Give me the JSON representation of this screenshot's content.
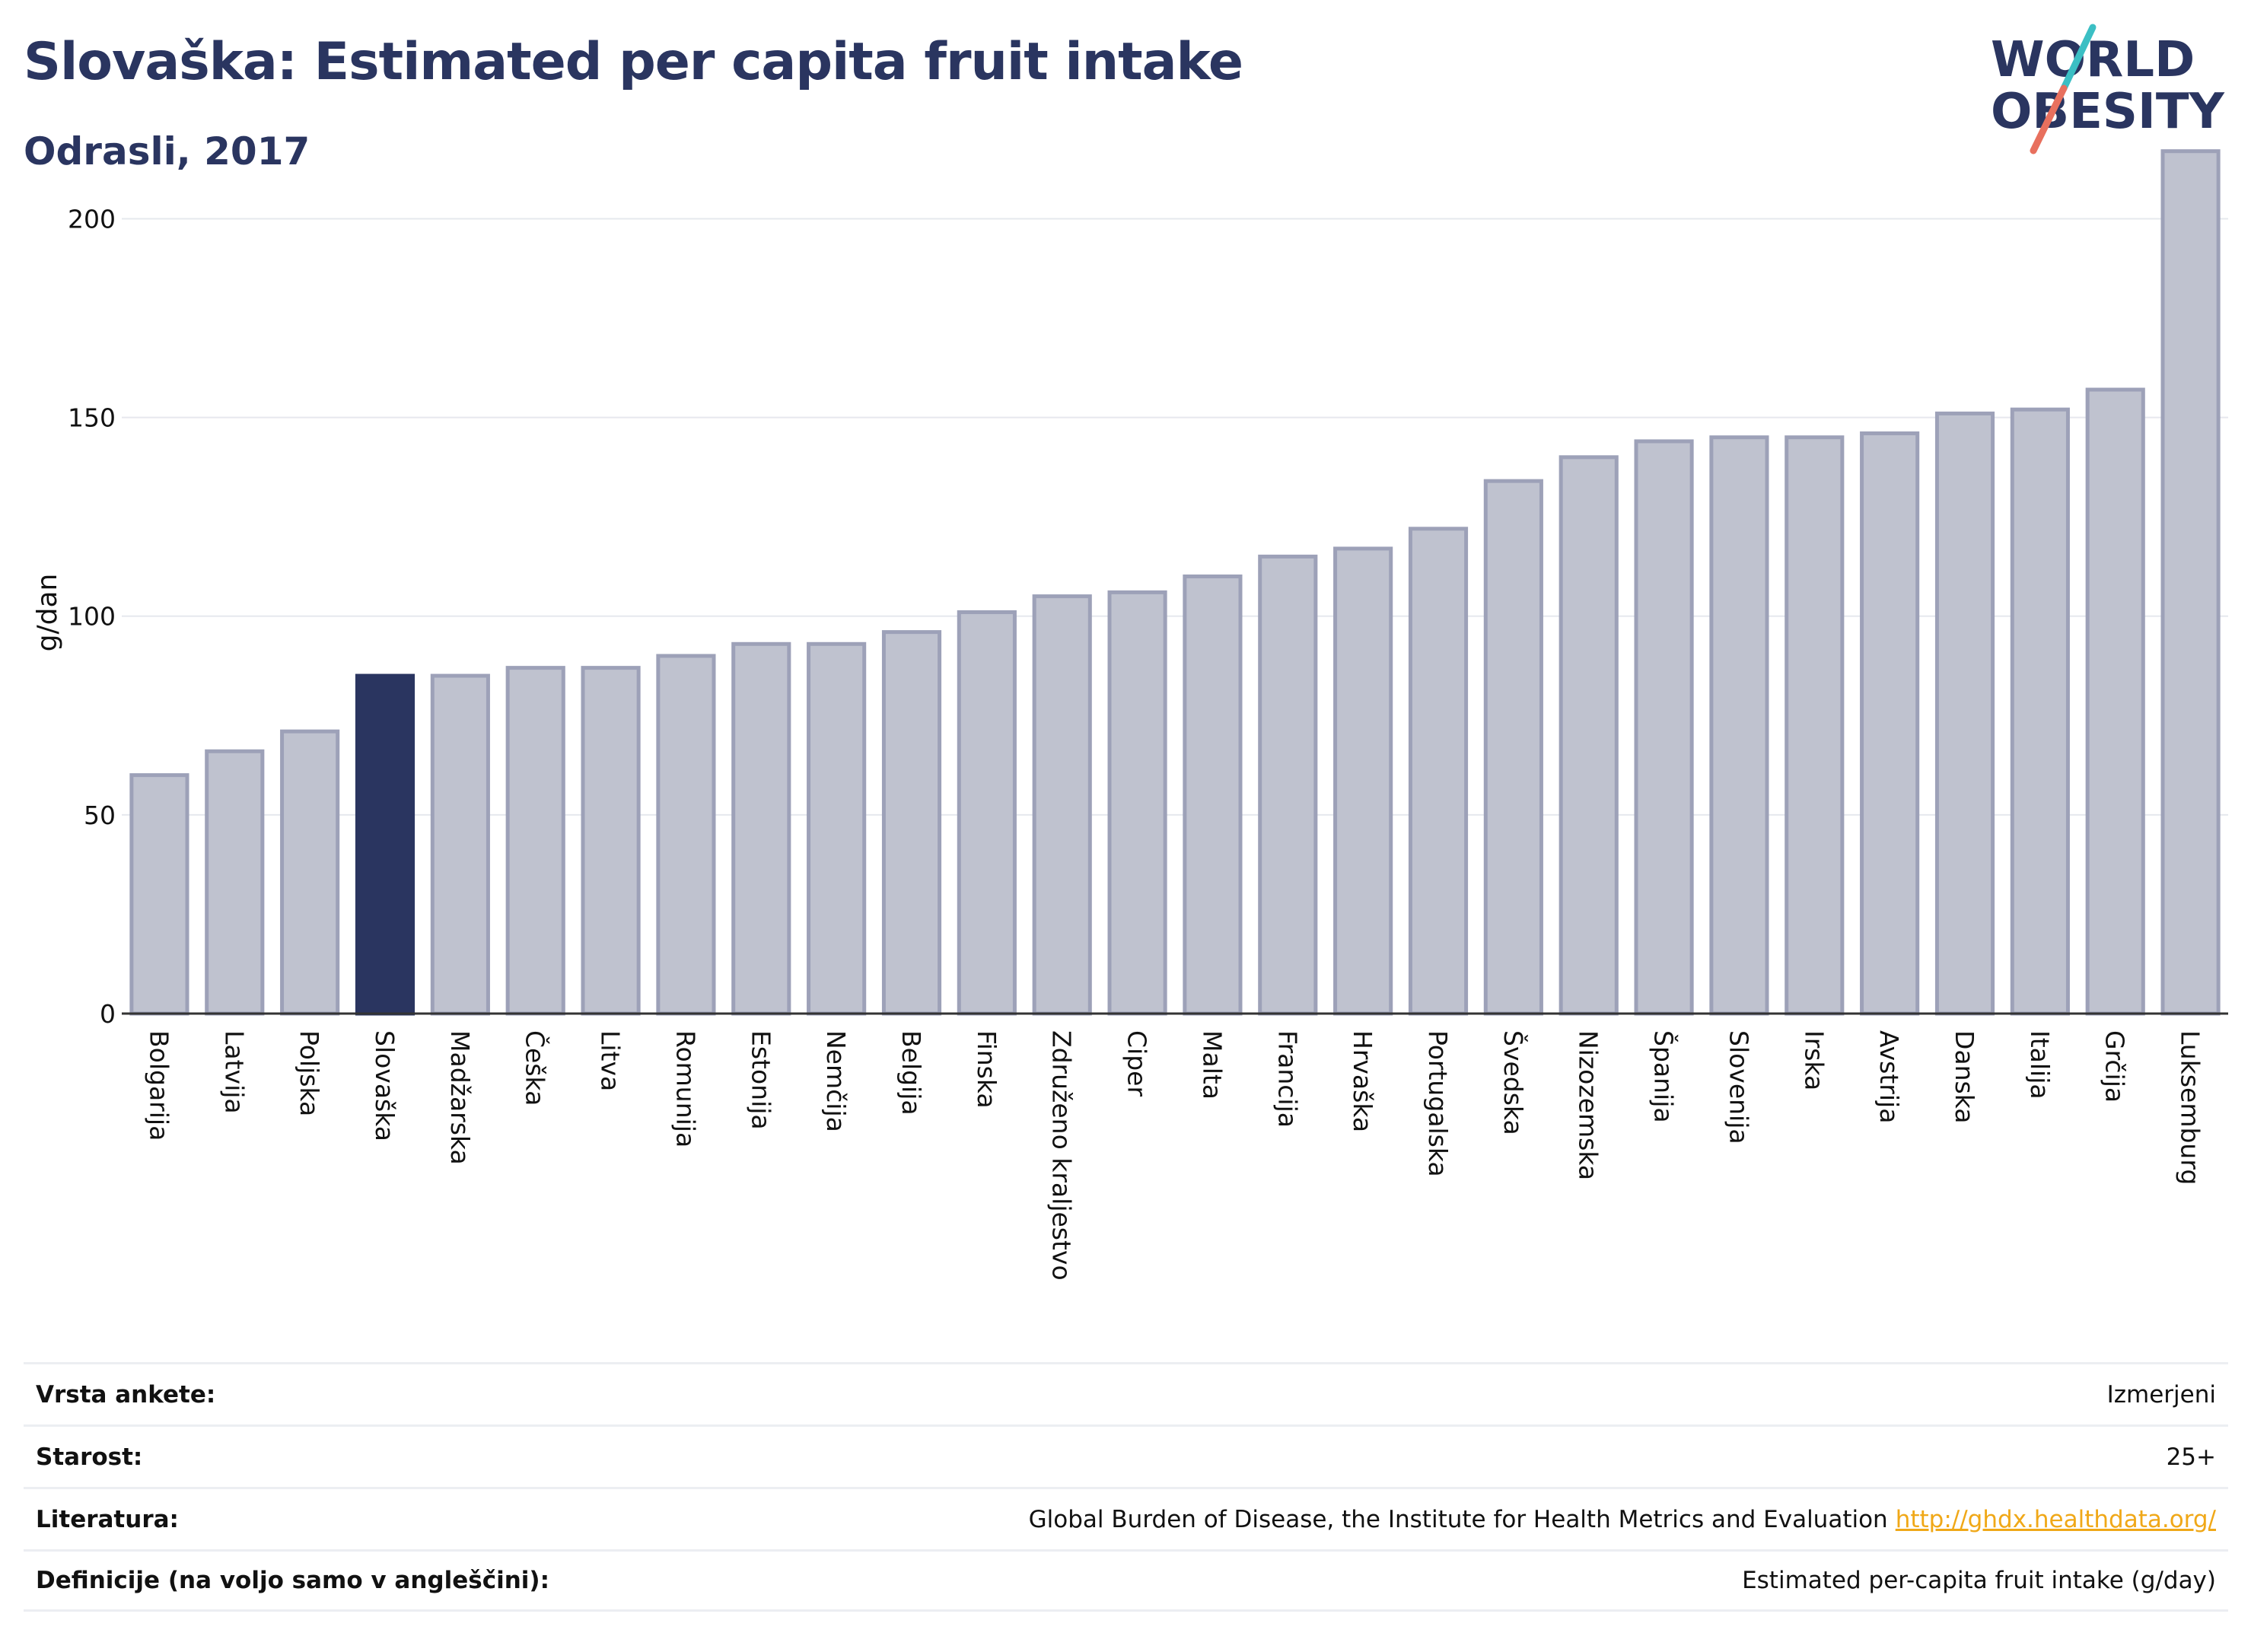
{
  "header": {
    "title": "Slovaška: Estimated per capita fruit intake",
    "subtitle": "Odrasli, 2017"
  },
  "logo": {
    "line1": "WORLD",
    "line2": "OBESITY"
  },
  "colors": {
    "highlight": "#2a3560",
    "bar_fill": "#bfc2cf",
    "bar_stroke": "#9da1b8",
    "grid": "#e6e8ee",
    "logo_teal": "#3bbfc4",
    "logo_coral": "#e8705e"
  },
  "chart_data": {
    "type": "bar",
    "ylabel": "g/dan",
    "xlabel": "",
    "ylim": [
      0,
      220
    ],
    "yticks": [
      0,
      50,
      100,
      150,
      200
    ],
    "grid": true,
    "highlight": "Slovaška",
    "categories": [
      "Bolgarija",
      "Latvija",
      "Poljska",
      "Slovaška",
      "Madžarska",
      "Češka",
      "Litva",
      "Romunija",
      "Estonija",
      "Nemčija",
      "Belgija",
      "Finska",
      "Združeno kraljestvo",
      "Ciper",
      "Malta",
      "Francija",
      "Hrvaška",
      "Portugalska",
      "Švedska",
      "Nizozemska",
      "Španija",
      "Slovenija",
      "Irska",
      "Avstrija",
      "Danska",
      "Italija",
      "Grčija",
      "Luksemburg"
    ],
    "values": [
      60,
      66,
      71,
      85,
      85,
      87,
      87,
      90,
      93,
      93,
      96,
      101,
      105,
      106,
      110,
      115,
      117,
      122,
      134,
      140,
      144,
      145,
      145,
      146,
      151,
      152,
      157,
      217
    ]
  },
  "info": {
    "rows": [
      {
        "label": "Vrsta ankete:",
        "value": "Izmerjeni"
      },
      {
        "label": "Starost:",
        "value": "25+"
      },
      {
        "label": "Literatura:",
        "value": "Global Burden of Disease, the Institute for Health Metrics and Evaluation",
        "link": "http://ghdx.healthdata.org/"
      },
      {
        "label": "Definicije (na voljo samo v angleščini):",
        "value": "Estimated per-capita fruit intake (g/day)"
      }
    ]
  }
}
